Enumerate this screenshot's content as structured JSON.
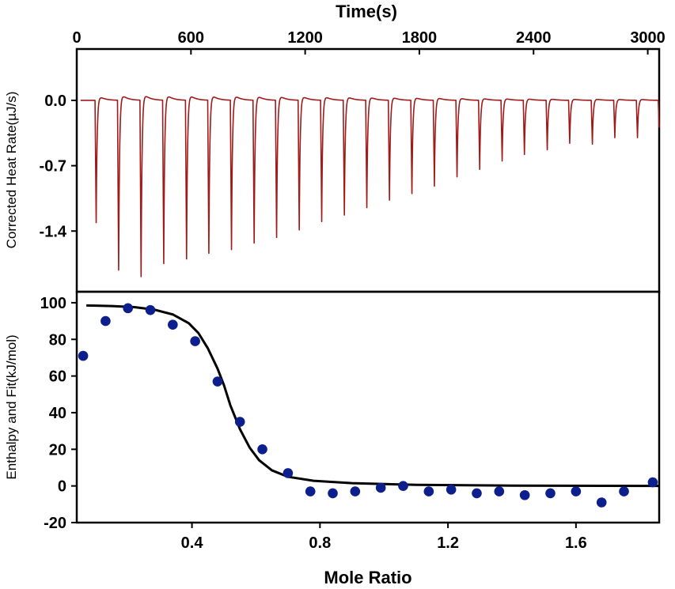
{
  "colors": {
    "thermogram": "#a11a1a",
    "points": "#0d1f8c",
    "fit": "#000000"
  },
  "chart_data": [
    {
      "type": "line",
      "name": "thermogram",
      "xlabel": "Time(s)",
      "ylabel": "Corrected Heat Rate(µJ/s)",
      "xlim": [
        0,
        3060
      ],
      "ylim": [
        -2.05,
        0.55
      ],
      "x_ticks": [
        "0",
        "600",
        "1200",
        "1800",
        "2400",
        "3000"
      ],
      "y_ticks": [
        "0.0",
        "-0.7",
        "-1.4"
      ],
      "x_tick_values": [
        0,
        600,
        1200,
        1800,
        2400,
        3000
      ],
      "y_tick_values": [
        0.0,
        -0.7,
        -1.4
      ],
      "baseline": 0.0,
      "injection_times": [
        96,
        214,
        332,
        451,
        571,
        688,
        807,
        926,
        1044,
        1163,
        1281,
        1400,
        1518,
        1637,
        1755,
        1873,
        1992,
        2111,
        2229,
        2346,
        2466,
        2584,
        2703,
        2821,
        2940,
        3055
      ],
      "peak_minima": [
        -1.31,
        -1.82,
        -1.89,
        -1.75,
        -1.7,
        -1.64,
        -1.6,
        -1.53,
        -1.47,
        -1.39,
        -1.3,
        -1.23,
        -1.15,
        -1.07,
        -1.0,
        -0.92,
        -0.82,
        -0.74,
        -0.65,
        -0.58,
        -0.53,
        -0.46,
        -0.47,
        -0.4,
        -0.4,
        -0.35
      ]
    },
    {
      "type": "scatter",
      "name": "enthalpy",
      "xlabel": "Mole Ratio",
      "ylabel": "Enthalpy and Fit(kJ/mol)",
      "xlim": [
        0.04,
        1.86
      ],
      "ylim": [
        -20,
        106
      ],
      "x_ticks": [
        "0.4",
        "0.8",
        "1.2",
        "1.6"
      ],
      "y_ticks": [
        "100",
        "80",
        "60",
        "40",
        "20",
        "0",
        "-20"
      ],
      "x_tick_values": [
        0.4,
        0.8,
        1.2,
        1.6
      ],
      "y_tick_values": [
        100,
        80,
        60,
        40,
        20,
        0,
        -20
      ],
      "points": {
        "x": [
          0.06,
          0.13,
          0.2,
          0.27,
          0.34,
          0.41,
          0.48,
          0.55,
          0.62,
          0.7,
          0.77,
          0.84,
          0.91,
          0.99,
          1.06,
          1.14,
          1.21,
          1.29,
          1.36,
          1.44,
          1.52,
          1.6,
          1.68,
          1.75,
          1.84
        ],
        "y": [
          71,
          90,
          97,
          96,
          88,
          79,
          57,
          35,
          20,
          7,
          -3,
          -4,
          -3,
          -1,
          0,
          -3,
          -2,
          -4,
          -3,
          -5,
          -4,
          -3,
          -9,
          -3,
          2
        ]
      },
      "fit": {
        "x": [
          0.07,
          0.15,
          0.22,
          0.28,
          0.34,
          0.39,
          0.42,
          0.45,
          0.48,
          0.5,
          0.52,
          0.55,
          0.58,
          0.61,
          0.65,
          0.7,
          0.78,
          0.9,
          1.1,
          1.4,
          1.86
        ],
        "y": [
          98.5,
          98.2,
          97.6,
          96.3,
          93.6,
          88.8,
          83.5,
          75.0,
          64.0,
          55.0,
          44.0,
          31.0,
          21.0,
          14.0,
          8.5,
          5.0,
          2.8,
          1.5,
          0.6,
          0.2,
          0.0
        ]
      }
    }
  ]
}
